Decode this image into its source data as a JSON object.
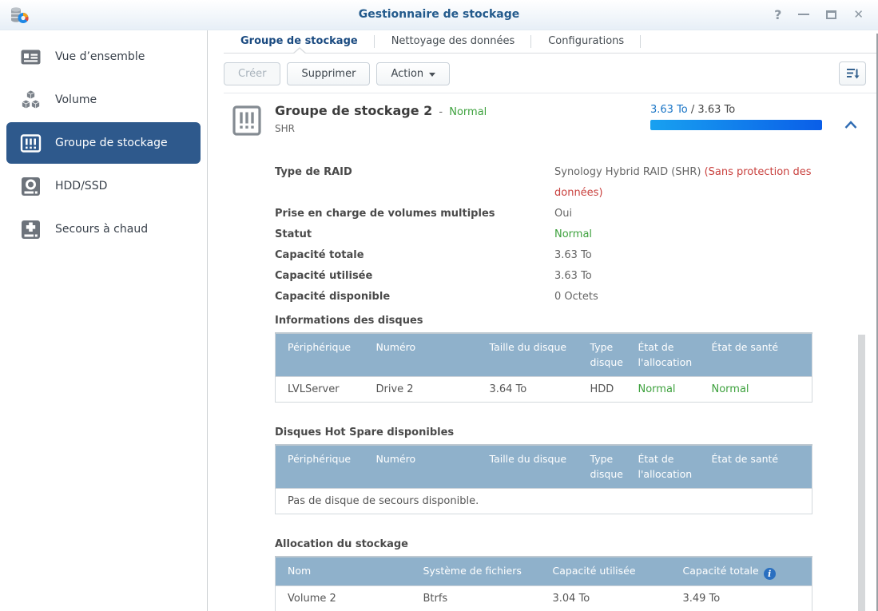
{
  "window": {
    "title": "Gestionnaire de stockage",
    "controls": {
      "help": "?",
      "close": "✕"
    }
  },
  "sidebar": {
    "items": [
      {
        "label": "Vue d’ensemble",
        "icon": "overview-icon",
        "active": false
      },
      {
        "label": "Volume",
        "icon": "volume-icon",
        "active": false
      },
      {
        "label": "Groupe de stockage",
        "icon": "storage-pool-icon",
        "active": true
      },
      {
        "label": "HDD/SSD",
        "icon": "hdd-icon",
        "active": false
      },
      {
        "label": "Secours à chaud",
        "icon": "hot-spare-icon",
        "active": false
      }
    ]
  },
  "tabs": [
    {
      "label": "Groupe de stockage",
      "active": true
    },
    {
      "label": "Nettoyage des données",
      "active": false
    },
    {
      "label": "Configurations",
      "active": false
    }
  ],
  "toolbar": {
    "buttons": [
      {
        "label": "Créer",
        "disabled": true
      },
      {
        "label": "Supprimer",
        "disabled": false
      },
      {
        "label": "Action",
        "has_menu": true
      }
    ],
    "sort_icon": "sort-descending-icon"
  },
  "pool": {
    "name": "Groupe de stockage 2",
    "name_separator": "-",
    "status": "Normal",
    "raid_type_short": "SHR",
    "usage": {
      "used": "3.63 To",
      "separator": " / ",
      "total": "3.63 To",
      "percent": 100
    },
    "details": [
      {
        "label": "Type de RAID",
        "value": "Synology Hybrid RAID (SHR) ",
        "warning": "(Sans protection des données)"
      },
      {
        "label": "Prise en charge de volumes multiples",
        "value": "Oui"
      },
      {
        "label": "Statut",
        "value": "Normal",
        "status": "ok"
      },
      {
        "label": "Capacité totale",
        "value": "3.63 To"
      },
      {
        "label": "Capacité utilisée",
        "value": "3.63 To"
      },
      {
        "label": "Capacité disponible",
        "value": "0 Octets"
      }
    ]
  },
  "tables": {
    "disks": {
      "title": "Informations des disques",
      "headers": [
        "Périphérique",
        "Numéro",
        "Taille du disque",
        "Type disque",
        "État de l'allocation",
        "État de santé"
      ],
      "rows": [
        [
          "LVLServer",
          "Drive 2",
          "3.64 To",
          "HDD",
          "Normal",
          "Normal"
        ]
      ]
    },
    "hot_spare": {
      "title": "Disques Hot Spare disponibles",
      "headers": [
        "Périphérique",
        "Numéro",
        "Taille du disque",
        "Type disque",
        "État de l'allocation",
        "État de santé"
      ],
      "empty_message": "Pas de disque de secours disponible."
    },
    "allocation": {
      "title": "Allocation du stockage",
      "headers": [
        "Nom",
        "Système de fichiers",
        "Capacité utilisée",
        "Capacité totale"
      ],
      "info_icon": "i",
      "rows": [
        [
          "Volume 2",
          "Btrfs",
          "3.04 To",
          "3.49 To"
        ]
      ]
    }
  },
  "colors": {
    "accent_blue": "#1874C6",
    "status_green": "#3DA13D",
    "warning_red": "#C9413E",
    "active_nav": "#2E598C",
    "table_header": "#8FB1CB",
    "progress_gradient_start": "#18A1F0",
    "progress_gradient_end": "#0A5EE8"
  }
}
